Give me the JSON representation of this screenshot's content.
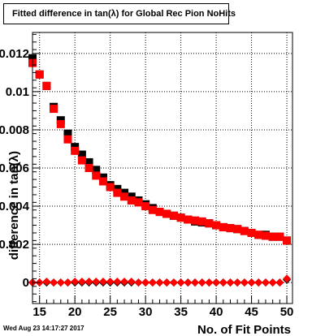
{
  "window": {
    "title": "Fitted difference in tan(λ) for Global Rec Pion NoHits",
    "date": "Wed Aug 23 14:17:27 2017"
  },
  "colors": {
    "series_black": "#000000",
    "series_red": "#ff0000",
    "grid": "#000000"
  },
  "chart_data": {
    "type": "scatter",
    "title": "Fitted difference in tan(λ) for Global Rec Pion NoHits",
    "xlabel": "No. of Fit Points",
    "ylabel": "difference in tan(λ)",
    "xlim": [
      14,
      50.8
    ],
    "ylim": [
      -0.0011,
      0.0131
    ],
    "grid": true,
    "x_ticks": [
      15,
      20,
      25,
      30,
      35,
      40,
      45,
      50
    ],
    "y_ticks": [
      0,
      0.002,
      0.004,
      0.006,
      0.008,
      0.01,
      0.012
    ],
    "y_tick_labels": [
      "0",
      "0.002",
      "0.004",
      "0.006",
      "0.008",
      "0.01",
      "0.012"
    ],
    "series": [
      {
        "color": "#000000",
        "marker": "square",
        "x": [
          14,
          15,
          16,
          17,
          18,
          19,
          20,
          21,
          22,
          23,
          24,
          25,
          26,
          27,
          28,
          29,
          30,
          31,
          32,
          33,
          34,
          35,
          36,
          37,
          38,
          39,
          40,
          41,
          42,
          43,
          44,
          45,
          46,
          47,
          48,
          49,
          50
        ],
        "y": [
          0.01175,
          0.0109,
          0.0103,
          0.0092,
          0.0085,
          0.0078,
          0.0071,
          0.0067,
          0.0063,
          0.0059,
          0.0055,
          0.0051,
          0.0049,
          0.0047,
          0.0045,
          0.0043,
          0.0041,
          0.0039,
          0.0037,
          0.0036,
          0.0035,
          0.0034,
          0.0033,
          0.0032,
          0.00315,
          0.0031,
          0.003,
          0.0029,
          0.00285,
          0.0028,
          0.0027,
          0.0026,
          0.0025,
          0.0025,
          0.0024,
          0.0024,
          0.0022
        ]
      },
      {
        "color": "#ff0000",
        "marker": "square",
        "x": [
          14,
          15,
          16,
          17,
          18,
          19,
          20,
          21,
          22,
          23,
          24,
          25,
          26,
          27,
          28,
          29,
          30,
          31,
          32,
          33,
          34,
          35,
          36,
          37,
          38,
          39,
          40,
          41,
          42,
          43,
          44,
          45,
          46,
          47,
          48,
          49,
          50
        ],
        "y": [
          0.0115,
          0.0109,
          0.0103,
          0.0091,
          0.0083,
          0.0075,
          0.0069,
          0.0064,
          0.006,
          0.0056,
          0.0053,
          0.005,
          0.0047,
          0.0045,
          0.0043,
          0.0042,
          0.004,
          0.0038,
          0.0037,
          0.0036,
          0.0035,
          0.0034,
          0.0033,
          0.00325,
          0.0032,
          0.0031,
          0.003,
          0.0029,
          0.00285,
          0.0028,
          0.0027,
          0.0026,
          0.0025,
          0.00245,
          0.0024,
          0.0024,
          0.0022
        ]
      },
      {
        "color": "#000000",
        "marker": "diamond",
        "x": [
          14,
          15,
          16,
          17,
          18,
          19,
          20,
          21,
          22,
          23,
          24,
          25,
          26,
          27,
          28,
          29,
          30,
          31,
          32,
          33,
          34,
          35,
          36,
          37,
          38,
          39,
          40,
          41,
          42,
          43,
          44,
          45,
          46,
          47,
          48,
          49,
          50
        ],
        "y": [
          0,
          0,
          0,
          0,
          0,
          0,
          0,
          0,
          0,
          0,
          0,
          0,
          0,
          0,
          0,
          0,
          0,
          0,
          0,
          0,
          0,
          0,
          0,
          0,
          0,
          0,
          0,
          0,
          0,
          0,
          0,
          0,
          0,
          0,
          0,
          0,
          0.00015
        ]
      },
      {
        "color": "#ff0000",
        "marker": "diamond",
        "x": [
          14,
          15,
          16,
          17,
          18,
          19,
          20,
          21,
          22,
          23,
          24,
          25,
          26,
          27,
          28,
          29,
          30,
          31,
          32,
          33,
          34,
          35,
          36,
          37,
          38,
          39,
          40,
          41,
          42,
          43,
          44,
          45,
          46,
          47,
          48,
          49,
          50
        ],
        "y": [
          0,
          0,
          5e-05,
          0,
          0,
          0,
          5e-05,
          5e-05,
          5e-05,
          5e-05,
          5e-05,
          5e-05,
          5e-05,
          5e-05,
          5e-05,
          0,
          0,
          0,
          0,
          0,
          0,
          0,
          0,
          0,
          0,
          0,
          0,
          0,
          0,
          0,
          0,
          0,
          0,
          0,
          0,
          0,
          0.0002
        ]
      }
    ]
  }
}
